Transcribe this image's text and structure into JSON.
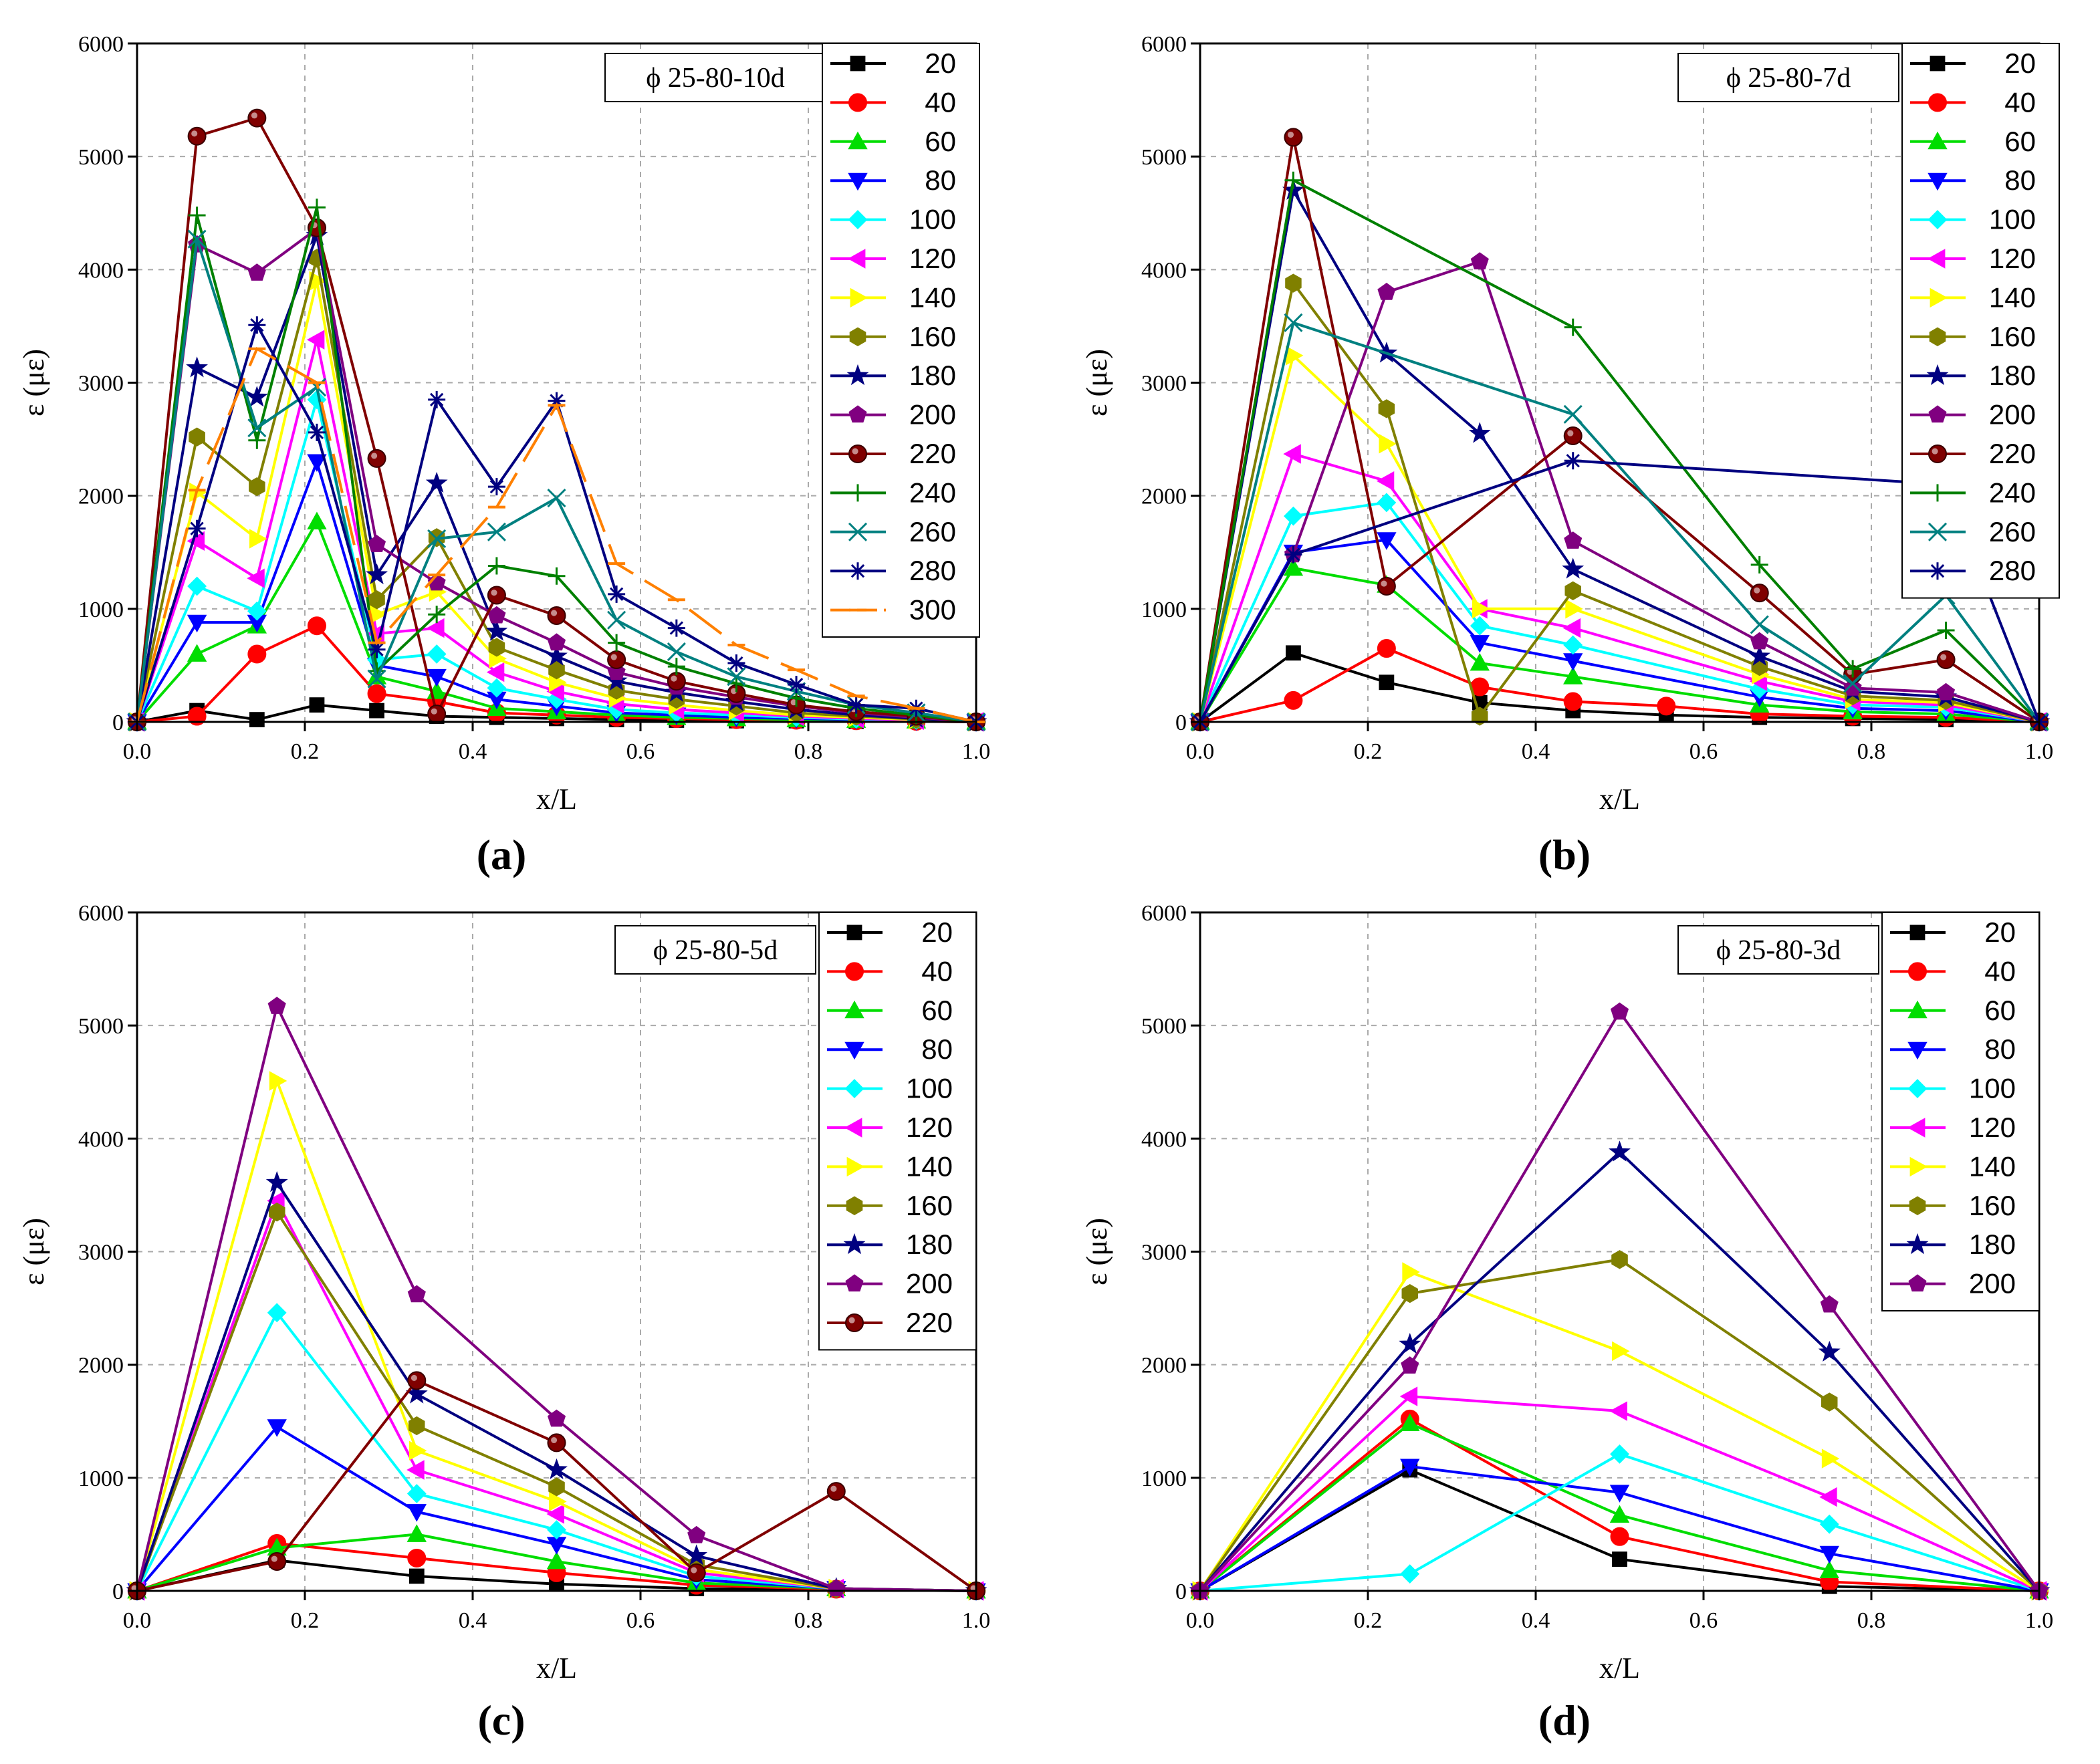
{
  "marker_colors": [
    "#000000",
    "#ff0000",
    "#00dd00",
    "#0000ff",
    "#00ffff",
    "#ff00ff",
    "#ffff00",
    "#808000",
    "#000080",
    "#800080",
    "#800000",
    "#008000",
    "#008080",
    "#000080",
    "#ff8000"
  ],
  "chart_data": [
    {
      "type": "line",
      "panel_label": "(a)",
      "tag": "ϕ 25-80-10d",
      "xlabel": "x/L",
      "ylabel": "ε (με)",
      "xlim": [
        0,
        1
      ],
      "ylim": [
        0,
        6000
      ],
      "x_ticks": [
        "0.0",
        "0.2",
        "0.4",
        "0.6",
        "0.8",
        "1.0"
      ],
      "y_ticks": [
        "0",
        "1000",
        "2000",
        "3000",
        "4000",
        "5000",
        "6000"
      ],
      "grid": true,
      "legend_position": "top-right",
      "x": [
        0,
        0.0714,
        0.1429,
        0.2143,
        0.2857,
        0.3571,
        0.4286,
        0.5,
        0.5714,
        0.6429,
        0.7143,
        0.7857,
        0.8571,
        0.9286,
        1.0
      ],
      "series": [
        {
          "name": "20",
          "color": "#000000",
          "marker": "square",
          "values": [
            0,
            100,
            20,
            150,
            100,
            50,
            40,
            30,
            20,
            15,
            10,
            10,
            5,
            5,
            0
          ]
        },
        {
          "name": "40",
          "color": "#ff0000",
          "marker": "circle",
          "values": [
            0,
            50,
            600,
            850,
            250,
            180,
            80,
            60,
            40,
            30,
            20,
            15,
            10,
            5,
            0
          ]
        },
        {
          "name": "60",
          "color": "#00dd00",
          "marker": "triangle-up",
          "values": [
            0,
            600,
            850,
            1770,
            400,
            270,
            120,
            90,
            60,
            40,
            30,
            20,
            15,
            10,
            0
          ]
        },
        {
          "name": "80",
          "color": "#0000ff",
          "marker": "triangle-down",
          "values": [
            0,
            880,
            880,
            2300,
            500,
            400,
            200,
            140,
            80,
            60,
            40,
            30,
            20,
            10,
            0
          ]
        },
        {
          "name": "100",
          "color": "#00ffff",
          "marker": "diamond",
          "values": [
            0,
            1200,
            980,
            2850,
            550,
            600,
            300,
            200,
            110,
            80,
            60,
            40,
            25,
            15,
            0
          ]
        },
        {
          "name": "120",
          "color": "#ff00ff",
          "marker": "triangle-left",
          "values": [
            0,
            1600,
            1270,
            3380,
            780,
            830,
            440,
            270,
            160,
            110,
            80,
            50,
            30,
            15,
            0
          ]
        },
        {
          "name": "140",
          "color": "#ffff00",
          "marker": "triangle-right",
          "values": [
            0,
            2030,
            1620,
            3900,
            950,
            1150,
            560,
            350,
            210,
            150,
            100,
            60,
            40,
            20,
            0
          ]
        },
        {
          "name": "160",
          "color": "#808000",
          "marker": "hexagon",
          "values": [
            0,
            2520,
            2080,
            4100,
            1080,
            1630,
            660,
            460,
            280,
            200,
            140,
            80,
            50,
            25,
            0
          ]
        },
        {
          "name": "180",
          "color": "#000080",
          "marker": "star",
          "values": [
            0,
            3130,
            2870,
            4300,
            1300,
            2110,
            800,
            580,
            360,
            260,
            180,
            110,
            60,
            30,
            0
          ]
        },
        {
          "name": "200",
          "color": "#800080",
          "marker": "pentagon",
          "values": [
            0,
            4220,
            3970,
            4360,
            1570,
            1230,
            940,
            700,
            440,
            310,
            220,
            140,
            80,
            40,
            0
          ]
        },
        {
          "name": "220",
          "color": "#800000",
          "marker": "ball",
          "values": [
            0,
            5180,
            5340,
            4370,
            2330,
            70,
            1120,
            940,
            550,
            360,
            250,
            150,
            90,
            50,
            0
          ]
        },
        {
          "name": "240",
          "color": "#008000",
          "marker": "plus",
          "values": [
            0,
            4480,
            2490,
            4550,
            450,
            950,
            1380,
            1290,
            700,
            490,
            340,
            210,
            120,
            60,
            0
          ]
        },
        {
          "name": "260",
          "color": "#008080",
          "marker": "x",
          "values": [
            0,
            4270,
            2600,
            2960,
            380,
            1620,
            1680,
            1980,
            900,
            620,
            400,
            270,
            150,
            80,
            0
          ]
        },
        {
          "name": "280",
          "color": "#000080",
          "marker": "asterisk",
          "values": [
            0,
            1710,
            3510,
            2560,
            640,
            2850,
            2080,
            2840,
            1130,
            830,
            520,
            330,
            150,
            120,
            0
          ]
        },
        {
          "name": "300",
          "color": "#ff8000",
          "marker": "dash",
          "values": [
            0,
            2050,
            3300,
            3000,
            700,
            1300,
            1900,
            2800,
            1400,
            1080,
            680,
            460,
            230,
            120,
            0
          ]
        }
      ]
    },
    {
      "type": "line",
      "panel_label": "(b)",
      "tag": "ϕ 25-80-7d",
      "xlabel": "x/L",
      "ylabel": "ε (με)",
      "xlim": [
        0,
        1
      ],
      "ylim": [
        0,
        6000
      ],
      "x_ticks": [
        "0.0",
        "0.2",
        "0.4",
        "0.6",
        "0.8",
        "1.0"
      ],
      "y_ticks": [
        "0",
        "1000",
        "2000",
        "3000",
        "4000",
        "5000",
        "6000"
      ],
      "grid": true,
      "legend_position": "top-right",
      "x": [
        0,
        0.1111,
        0.2222,
        0.3333,
        0.4444,
        0.5556,
        0.6667,
        0.7778,
        0.8889,
        1.0
      ],
      "series": [
        {
          "name": "20",
          "color": "#000000",
          "marker": "square",
          "values": [
            0,
            610,
            350,
            170,
            100,
            60,
            40,
            30,
            20,
            0
          ]
        },
        {
          "name": "40",
          "color": "#ff0000",
          "marker": "circle",
          "values": [
            0,
            190,
            650,
            310,
            180,
            140,
            70,
            50,
            40,
            0
          ]
        },
        {
          "name": "60",
          "color": "#00dd00",
          "marker": "triangle-up",
          "values": [
            0,
            1360,
            1210,
            520,
            400,
            null,
            150,
            90,
            70,
            0
          ]
        },
        {
          "name": "80",
          "color": "#0000ff",
          "marker": "triangle-down",
          "values": [
            0,
            1500,
            1610,
            700,
            540,
            null,
            220,
            120,
            100,
            0
          ]
        },
        {
          "name": "100",
          "color": "#00ffff",
          "marker": "diamond",
          "values": [
            0,
            1820,
            1940,
            850,
            680,
            null,
            290,
            150,
            130,
            0
          ]
        },
        {
          "name": "120",
          "color": "#ff00ff",
          "marker": "triangle-left",
          "values": [
            0,
            2370,
            2130,
            1000,
            830,
            null,
            360,
            180,
            150,
            0
          ]
        },
        {
          "name": "140",
          "color": "#ffff00",
          "marker": "triangle-right",
          "values": [
            0,
            3240,
            2460,
            1000,
            1000,
            null,
            420,
            200,
            170,
            0
          ]
        },
        {
          "name": "160",
          "color": "#808000",
          "marker": "hexagon",
          "values": [
            0,
            3880,
            2770,
            50,
            1160,
            null,
            490,
            230,
            190,
            0
          ]
        },
        {
          "name": "180",
          "color": "#000080",
          "marker": "star",
          "values": [
            0,
            4700,
            3260,
            2550,
            1350,
            null,
            580,
            270,
            220,
            0
          ]
        },
        {
          "name": "200",
          "color": "#800080",
          "marker": "pentagon",
          "values": [
            0,
            1480,
            3800,
            4070,
            1600,
            null,
            710,
            300,
            260,
            0
          ]
        },
        {
          "name": "220",
          "color": "#800000",
          "marker": "ball",
          "values": [
            0,
            5170,
            1200,
            null,
            2530,
            null,
            1140,
            420,
            550,
            0
          ]
        },
        {
          "name": "240",
          "color": "#008000",
          "marker": "plus",
          "values": [
            0,
            4790,
            null,
            null,
            3490,
            null,
            1390,
            470,
            810,
            0
          ]
        },
        {
          "name": "260",
          "color": "#008080",
          "marker": "x",
          "values": [
            0,
            3530,
            null,
            null,
            2720,
            null,
            860,
            340,
            1120,
            0
          ]
        },
        {
          "name": "280",
          "color": "#000080",
          "marker": "asterisk",
          "values": [
            0,
            1480,
            null,
            null,
            2310,
            null,
            null,
            null,
            2100,
            0
          ]
        }
      ]
    },
    {
      "type": "line",
      "panel_label": "(c)",
      "tag": "ϕ 25-80-5d",
      "xlabel": "x/L",
      "ylabel": "ε (με)",
      "xlim": [
        0,
        1
      ],
      "ylim": [
        0,
        6000
      ],
      "x_ticks": [
        "0.0",
        "0.2",
        "0.4",
        "0.6",
        "0.8",
        "1.0"
      ],
      "y_ticks": [
        "0",
        "1000",
        "2000",
        "3000",
        "4000",
        "5000",
        "6000"
      ],
      "grid": true,
      "legend_position": "top-right",
      "x": [
        0,
        0.1667,
        0.3333,
        0.5,
        0.6667,
        0.8333,
        1.0
      ],
      "series": [
        {
          "name": "20",
          "color": "#000000",
          "marker": "square",
          "values": [
            0,
            270,
            130,
            60,
            20,
            10,
            0
          ]
        },
        {
          "name": "40",
          "color": "#ff0000",
          "marker": "circle",
          "values": [
            0,
            420,
            290,
            160,
            50,
            15,
            0
          ]
        },
        {
          "name": "60",
          "color": "#00dd00",
          "marker": "triangle-up",
          "values": [
            0,
            380,
            500,
            260,
            70,
            20,
            0
          ]
        },
        {
          "name": "80",
          "color": "#0000ff",
          "marker": "triangle-down",
          "values": [
            0,
            1450,
            700,
            410,
            100,
            20,
            0
          ]
        },
        {
          "name": "100",
          "color": "#00ffff",
          "marker": "diamond",
          "values": [
            0,
            2460,
            860,
            540,
            130,
            20,
            0
          ]
        },
        {
          "name": "120",
          "color": "#ff00ff",
          "marker": "triangle-left",
          "values": [
            0,
            3450,
            1070,
            680,
            160,
            20,
            0
          ]
        },
        {
          "name": "140",
          "color": "#ffff00",
          "marker": "triangle-right",
          "values": [
            0,
            4510,
            1240,
            790,
            190,
            20,
            0
          ]
        },
        {
          "name": "160",
          "color": "#808000",
          "marker": "hexagon",
          "values": [
            0,
            3350,
            1460,
            920,
            230,
            20,
            0
          ]
        },
        {
          "name": "180",
          "color": "#000080",
          "marker": "star",
          "values": [
            0,
            3610,
            1740,
            1070,
            310,
            20,
            0
          ]
        },
        {
          "name": "200",
          "color": "#800080",
          "marker": "pentagon",
          "values": [
            0,
            5170,
            2620,
            1520,
            490,
            20,
            0
          ]
        },
        {
          "name": "220",
          "color": "#800000",
          "marker": "ball",
          "values": [
            0,
            260,
            1860,
            1310,
            160,
            880,
            0
          ]
        }
      ]
    },
    {
      "type": "line",
      "panel_label": "(d)",
      "tag": "ϕ 25-80-3d",
      "xlabel": "x/L",
      "ylabel": "ε (με)",
      "xlim": [
        0,
        1
      ],
      "ylim": [
        0,
        6000
      ],
      "x_ticks": [
        "0.0",
        "0.2",
        "0.4",
        "0.6",
        "0.8",
        "1.0"
      ],
      "y_ticks": [
        "0",
        "1000",
        "2000",
        "3000",
        "4000",
        "5000",
        "6000"
      ],
      "grid": true,
      "legend_position": "top-right",
      "x": [
        0,
        0.25,
        0.5,
        0.75,
        1.0
      ],
      "series": [
        {
          "name": "20",
          "color": "#000000",
          "marker": "square",
          "values": [
            0,
            1070,
            280,
            40,
            0
          ]
        },
        {
          "name": "40",
          "color": "#ff0000",
          "marker": "circle",
          "values": [
            0,
            1520,
            480,
            80,
            0
          ]
        },
        {
          "name": "60",
          "color": "#00dd00",
          "marker": "triangle-up",
          "values": [
            0,
            1480,
            670,
            180,
            0
          ]
        },
        {
          "name": "80",
          "color": "#0000ff",
          "marker": "triangle-down",
          "values": [
            0,
            1100,
            870,
            330,
            0
          ]
        },
        {
          "name": "100",
          "color": "#00ffff",
          "marker": "diamond",
          "values": [
            0,
            150,
            1210,
            590,
            0
          ]
        },
        {
          "name": "120",
          "color": "#ff00ff",
          "marker": "triangle-left",
          "values": [
            0,
            1720,
            1590,
            830,
            0
          ]
        },
        {
          "name": "140",
          "color": "#ffff00",
          "marker": "triangle-right",
          "values": [
            0,
            2820,
            2120,
            1170,
            0
          ]
        },
        {
          "name": "160",
          "color": "#808000",
          "marker": "hexagon",
          "values": [
            0,
            2630,
            2930,
            1670,
            0
          ]
        },
        {
          "name": "180",
          "color": "#000080",
          "marker": "star",
          "values": [
            0,
            2180,
            3880,
            2110,
            0
          ]
        },
        {
          "name": "200",
          "color": "#800080",
          "marker": "pentagon",
          "values": [
            0,
            1990,
            5120,
            2530,
            0
          ]
        }
      ]
    }
  ]
}
